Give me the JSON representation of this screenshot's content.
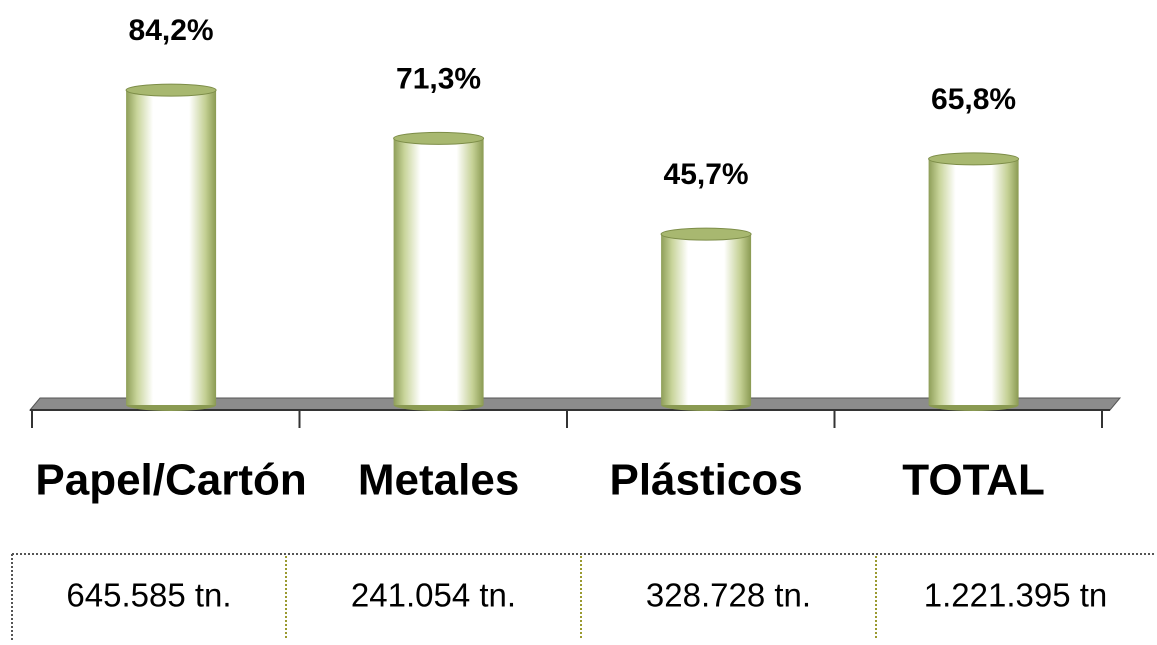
{
  "chart_data": {
    "type": "bar",
    "categories": [
      "Papel/Cartón",
      "Metales",
      "Plásticos",
      "TOTAL"
    ],
    "values": [
      84.2,
      71.3,
      45.7,
      65.8
    ],
    "value_labels": [
      "84,2%",
      "71,3%",
      "45,7%",
      "65,8%"
    ],
    "color": "#a8b870",
    "ylim": [
      0,
      100
    ]
  },
  "table": {
    "rows": [
      [
        "645.585 tn.",
        "241.054 tn.",
        "328.728 tn.",
        "1.221.395 tn"
      ]
    ]
  }
}
